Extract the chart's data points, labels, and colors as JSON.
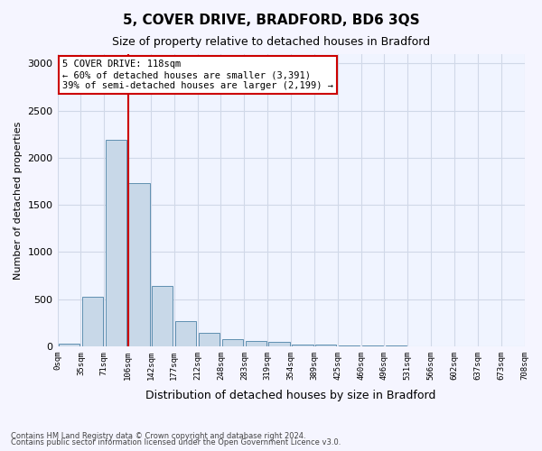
{
  "title": "5, COVER DRIVE, BRADFORD, BD6 3QS",
  "subtitle": "Size of property relative to detached houses in Bradford",
  "xlabel": "Distribution of detached houses by size in Bradford",
  "ylabel": "Number of detached properties",
  "footnote1": "Contains HM Land Registry data © Crown copyright and database right 2024.",
  "footnote2": "Contains public sector information licensed under the Open Government Licence v3.0.",
  "bar_color": "#c8d8e8",
  "bar_edge_color": "#6090b0",
  "annotation_box_color": "#cc0000",
  "vline_color": "#cc0000",
  "grid_color": "#d0d8e8",
  "bin_labels": [
    "0sqm",
    "35sqm",
    "71sqm",
    "106sqm",
    "142sqm",
    "177sqm",
    "212sqm",
    "248sqm",
    "283sqm",
    "319sqm",
    "354sqm",
    "389sqm",
    "425sqm",
    "460sqm",
    "496sqm",
    "531sqm",
    "566sqm",
    "602sqm",
    "637sqm",
    "673sqm",
    "708sqm"
  ],
  "bar_values": [
    25,
    520,
    2190,
    1730,
    635,
    270,
    140,
    75,
    55,
    45,
    20,
    15,
    8,
    5,
    3,
    2,
    1,
    1,
    0,
    0
  ],
  "annotation_text": "5 COVER DRIVE: 118sqm\n← 60% of detached houses are smaller (3,391)\n39% of semi-detached houses are larger (2,199) →",
  "ylim": [
    0,
    3100
  ],
  "vline_x": 2.55,
  "yticks": [
    0,
    500,
    1000,
    1500,
    2000,
    2500,
    3000
  ]
}
